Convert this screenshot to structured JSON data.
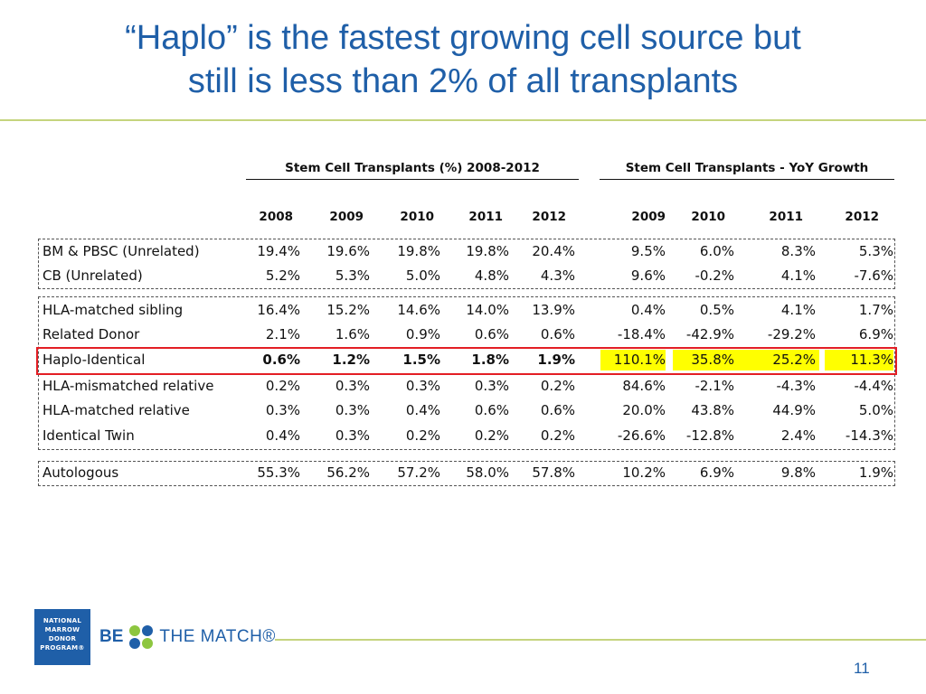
{
  "slide": {
    "title_line1": "“Haplo” is the fastest growing cell source but",
    "title_line2": "still is less than 2% of all transplants",
    "page_number": "11"
  },
  "table": {
    "group_pct_header": "Stem Cell Transplants (%) 2008-2012",
    "group_growth_header": "Stem Cell Transplants - YoY Growth",
    "pct_years": [
      "2008",
      "2009",
      "2010",
      "2011",
      "2012"
    ],
    "growth_years": [
      "2009",
      "2010",
      "2011",
      "2012"
    ],
    "rows": [
      {
        "label": "BM & PBSC (Unrelated)",
        "pct": [
          "19.4%",
          "19.6%",
          "19.8%",
          "19.8%",
          "20.4%"
        ],
        "growth": [
          "9.5%",
          "6.0%",
          "8.3%",
          "5.3%"
        ]
      },
      {
        "label": "CB (Unrelated)",
        "pct": [
          "5.2%",
          "5.3%",
          "5.0%",
          "4.8%",
          "4.3%"
        ],
        "growth": [
          "9.6%",
          "-0.2%",
          "4.1%",
          "-7.6%"
        ]
      },
      {
        "label": "HLA-matched sibling",
        "pct": [
          "16.4%",
          "15.2%",
          "14.6%",
          "14.0%",
          "13.9%"
        ],
        "growth": [
          "0.4%",
          "0.5%",
          "4.1%",
          "1.7%"
        ]
      },
      {
        "label": "Related Donor",
        "pct": [
          "2.1%",
          "1.6%",
          "0.9%",
          "0.6%",
          "0.6%"
        ],
        "growth": [
          "-18.4%",
          "-42.9%",
          "-29.2%",
          "6.9%"
        ]
      },
      {
        "label": "Haplo-Identical",
        "pct": [
          "0.6%",
          "1.2%",
          "1.5%",
          "1.8%",
          "1.9%"
        ],
        "growth": [
          "110.1%",
          "35.8%",
          "25.2%",
          "11.3%"
        ]
      },
      {
        "label": "HLA-mismatched relative",
        "pct": [
          "0.2%",
          "0.3%",
          "0.3%",
          "0.3%",
          "0.2%"
        ],
        "growth": [
          "84.6%",
          "-2.1%",
          "-4.3%",
          "-4.4%"
        ]
      },
      {
        "label": "HLA-matched relative",
        "pct": [
          "0.3%",
          "0.3%",
          "0.4%",
          "0.6%",
          "0.6%"
        ],
        "growth": [
          "20.0%",
          "43.8%",
          "44.9%",
          "5.0%"
        ]
      },
      {
        "label": "Identical Twin",
        "pct": [
          "0.4%",
          "0.3%",
          "0.2%",
          "0.2%",
          "0.2%"
        ],
        "growth": [
          "-26.6%",
          "-12.8%",
          "2.4%",
          "-14.3%"
        ]
      },
      {
        "label": "Autologous",
        "pct": [
          "55.3%",
          "56.2%",
          "57.2%",
          "58.0%",
          "57.8%"
        ],
        "growth": [
          "10.2%",
          "6.9%",
          "9.8%",
          "1.9%"
        ]
      }
    ],
    "highlight_color": "#FFFF00",
    "outline_color": "#E31E24"
  },
  "branding": {
    "nmdp_logo_text": [
      "NATIONAL",
      "MARROW",
      "DONOR",
      "PROGRAM®"
    ],
    "be_the_match_be": "BE",
    "be_the_match_rest": "THE MATCH®",
    "brand_blue": "#1F5FA8",
    "brand_green": "#C5D47E"
  }
}
